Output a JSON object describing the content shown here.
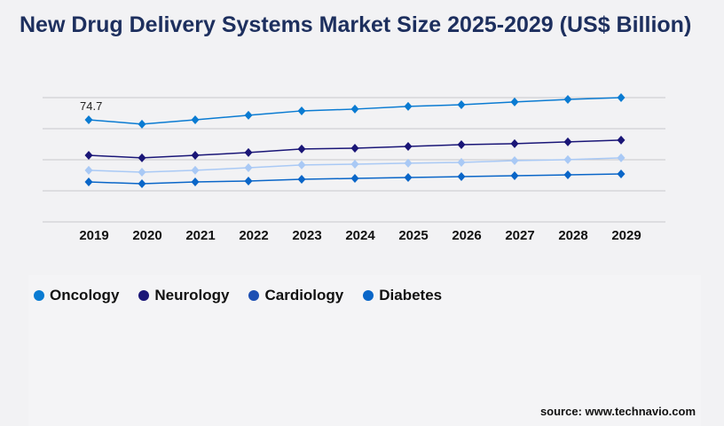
{
  "chart_data": {
    "type": "line",
    "title": "New Drug Delivery Systems Market Size 2025-2029 (US$ Billion)",
    "x": [
      "2019",
      "2020",
      "2021",
      "2022",
      "2023",
      "2024",
      "2025",
      "2026",
      "2027",
      "2028",
      "2029"
    ],
    "series": [
      {
        "name": "Oncology",
        "color": "#0a7bd2",
        "legend_color": "#0a7bd2",
        "values": [
          74.7,
          71.5,
          74.7,
          78.0,
          81.2,
          82.5,
          84.5,
          85.7,
          87.7,
          89.6,
          90.9
        ]
      },
      {
        "name": "Neurology",
        "color": "#1a1677",
        "legend_color": "#1a1677",
        "values": [
          48.7,
          46.8,
          48.7,
          50.7,
          53.3,
          53.9,
          55.2,
          56.5,
          57.2,
          58.5,
          59.8
        ]
      },
      {
        "name": "Cardiology",
        "color": "#a9c9f5",
        "legend_color": "#1d4fb3",
        "values": [
          37.7,
          36.4,
          37.7,
          39.6,
          41.6,
          42.2,
          42.9,
          43.5,
          44.8,
          45.5,
          46.8
        ]
      },
      {
        "name": "Diabetes",
        "color": "#0a66c8",
        "legend_color": "#0a66c8",
        "values": [
          29.2,
          27.9,
          29.2,
          29.9,
          31.2,
          31.8,
          32.5,
          33.1,
          33.8,
          34.4,
          35.1
        ]
      }
    ],
    "data_labels": [
      {
        "series": "Oncology",
        "x": "2019",
        "text": "74.7"
      }
    ],
    "ylim": [
      0,
      90.9
    ],
    "grid": true,
    "legend": "bottom-left"
  },
  "source": "source: www.technavio.com"
}
